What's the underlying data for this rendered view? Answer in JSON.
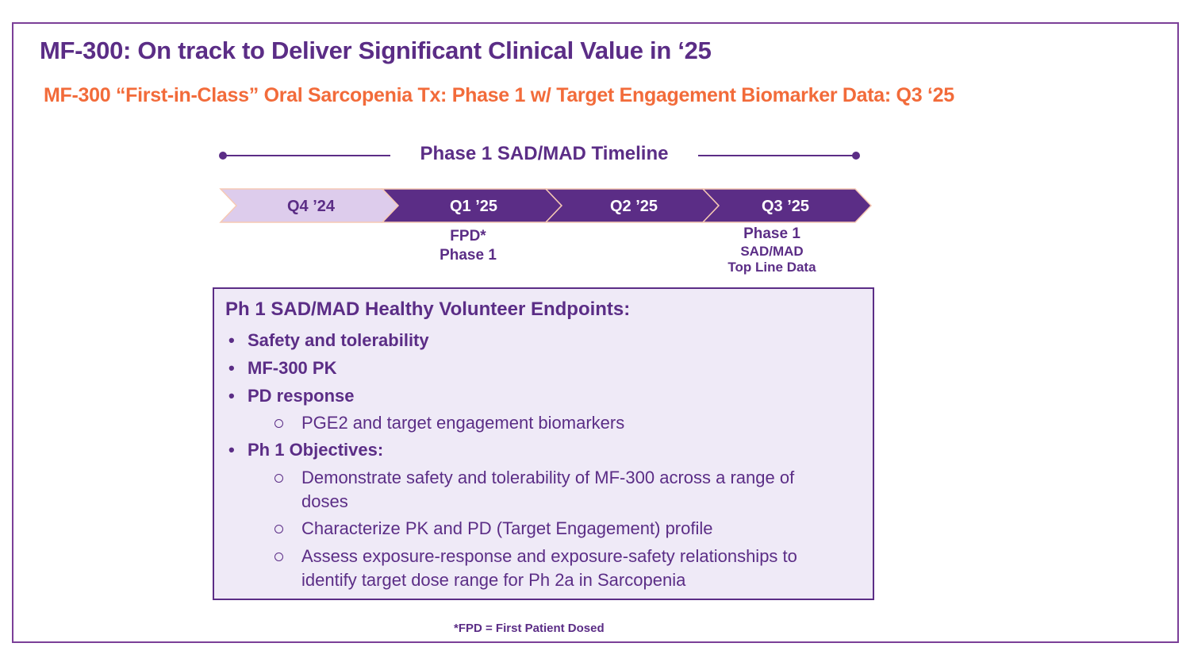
{
  "slide": {
    "title": "MF-300: On track to Deliver Significant Clinical Value in ‘25",
    "subtitle": "MF-300 “First-in-Class” Oral Sarcopenia Tx: Phase 1 w/ Target Engagement Biomarker Data: Q3 ‘25"
  },
  "timeline": {
    "title": "Phase 1 SAD/MAD Timeline",
    "quarters": [
      {
        "label": "Q4 ’24",
        "fill": "#DDCCEC",
        "text_color": "#5B2D86"
      },
      {
        "label": "Q1 ’25",
        "fill": "#5B2D86",
        "text_color": "#FFFFFF"
      },
      {
        "label": "Q2 ’25",
        "fill": "#5B2D86",
        "text_color": "#FFFFFF"
      },
      {
        "label": "Q3 ’25",
        "fill": "#5B2D86",
        "text_color": "#FFFFFF"
      }
    ],
    "milestones": {
      "fpd": {
        "line1": "FPD*",
        "line2": "Phase 1"
      },
      "q3": {
        "line1": "Phase 1",
        "line2": "SAD/MAD",
        "line3": "Top Line Data"
      }
    }
  },
  "endpoints": {
    "heading": "Ph 1 SAD/MAD Healthy Volunteer Endpoints:",
    "bullets": [
      "Safety and tolerability",
      "MF-300 PK",
      "PD response",
      "Ph 1 Objectives:"
    ],
    "pd_sub": "PGE2 and target engagement biomarkers",
    "objectives": [
      "Demonstrate safety and tolerability of MF-300 across a range of doses",
      "Characterize PK and PD (Target Engagement) profile",
      "Assess exposure-response and exposure-safety relationships to identify target dose range for Ph 2a in Sarcopenia"
    ]
  },
  "footnote": "*FPD = First Patient Dosed",
  "colors": {
    "brand_purple": "#5B2D86",
    "accent_orange": "#F26B3A",
    "light_purple": "#DDCCEC",
    "box_fill": "#EFEAF7"
  }
}
